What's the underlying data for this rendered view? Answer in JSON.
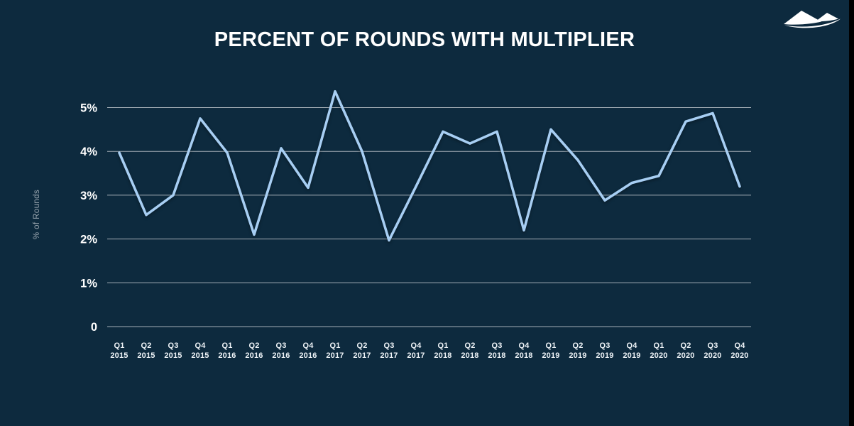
{
  "page": {
    "background_color": "#0d2a3e",
    "edge_strip_color": "#000000"
  },
  "header": {
    "title": "PERCENT OF ROUNDS WITH MULTIPLIER",
    "logo_icon": "mountain-peaks-logo",
    "logo_color": "#ffffff"
  },
  "chart_data": {
    "type": "line",
    "title": "PERCENT OF ROUNDS WITH MULTIPLIER",
    "xlabel": "",
    "ylabel": "% of Rounds",
    "categories": [
      "Q1 2015",
      "Q2 2015",
      "Q3 2015",
      "Q4 2015",
      "Q1 2016",
      "Q2 2016",
      "Q3 2016",
      "Q4 2016",
      "Q1 2017",
      "Q2 2017",
      "Q3 2017",
      "Q4 2017",
      "Q1 2018",
      "Q2 2018",
      "Q3 2018",
      "Q4 2018",
      "Q1 2019",
      "Q2 2019",
      "Q3 2019",
      "Q4 2019",
      "Q1 2020",
      "Q2 2020",
      "Q3 2020",
      "Q4 2020"
    ],
    "values": [
      3.97,
      2.55,
      3.0,
      4.75,
      3.97,
      2.1,
      4.07,
      3.17,
      5.37,
      4.0,
      1.97,
      3.2,
      4.45,
      4.18,
      4.45,
      2.2,
      4.5,
      3.8,
      2.88,
      3.28,
      3.44,
      4.68,
      4.87,
      3.2
    ],
    "ylim": [
      0,
      5.5
    ],
    "yticks": [
      {
        "value": 0,
        "label": "0"
      },
      {
        "value": 1,
        "label": "1%"
      },
      {
        "value": 2,
        "label": "2%"
      },
      {
        "value": 3,
        "label": "3%"
      },
      {
        "value": 4,
        "label": "4%"
      },
      {
        "value": 5,
        "label": "5%"
      }
    ],
    "grid": "horizontal",
    "legend": "none",
    "line_color": "#a7cef3",
    "grid_color": "#a3adb5",
    "tick_label_color": "#ffffff",
    "axis_title_color": "#96a3ad"
  }
}
